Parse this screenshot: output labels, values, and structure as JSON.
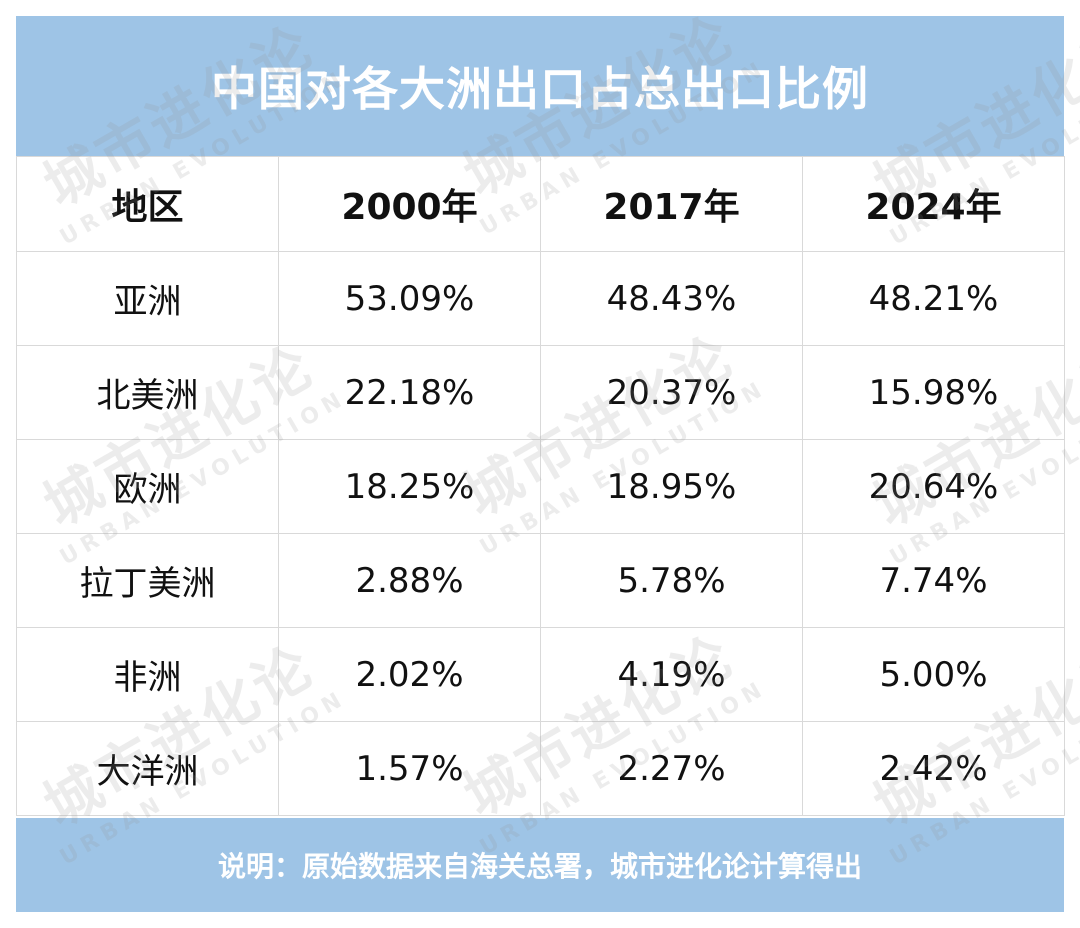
{
  "title": "中国对各大洲出口占总出口比例",
  "table": {
    "headers": [
      "地区",
      "2000年",
      "2017年",
      "2024年"
    ],
    "rows": [
      [
        "亚洲",
        "53.09%",
        "48.43%",
        "48.21%"
      ],
      [
        "北美洲",
        "22.18%",
        "20.37%",
        "15.98%"
      ],
      [
        "欧洲",
        "18.25%",
        "18.95%",
        "20.64%"
      ],
      [
        "拉丁美洲",
        "2.88%",
        "5.78%",
        "7.74%"
      ],
      [
        "非洲",
        "2.02%",
        "4.19%",
        "5.00%"
      ],
      [
        "大洋洲",
        "1.57%",
        "2.27%",
        "2.42%"
      ]
    ]
  },
  "footer": "说明：原始数据来自海关总署，城市进化论计算得出",
  "watermark": {
    "cn": "城市进化论",
    "en": "URBAN EVOLUTION"
  },
  "colors": {
    "header_bar": "#9ec4e6",
    "header_text": "#ffffff"
  }
}
